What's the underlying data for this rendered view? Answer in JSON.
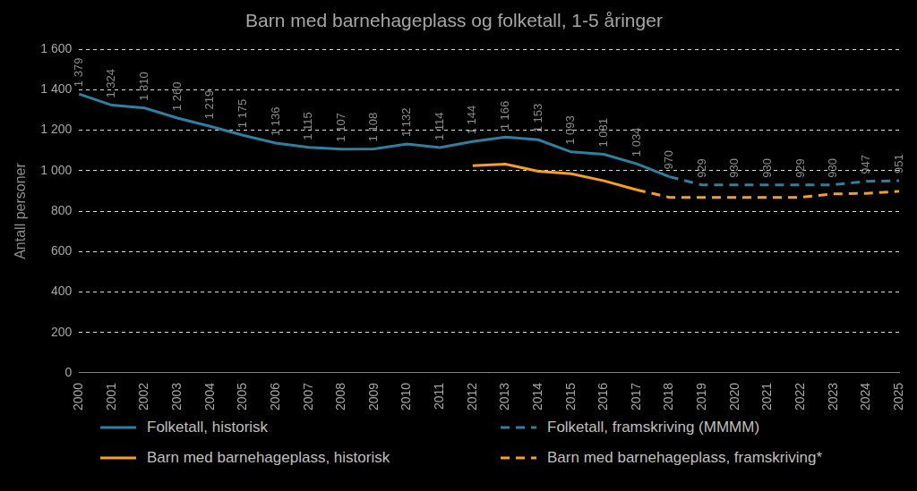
{
  "chart_data": {
    "type": "line",
    "title": "Barn med barnehageplass og folketall, 1-5 åringer",
    "y_label": "Antall personer",
    "categories": [
      "2000",
      "2001",
      "2002",
      "2003",
      "2004",
      "2005",
      "2006",
      "2007",
      "2008",
      "2009",
      "2010",
      "2011",
      "2012",
      "2013",
      "2014",
      "2015",
      "2016",
      "2017",
      "2018",
      "2019",
      "2020",
      "2021",
      "2022",
      "2023",
      "2024",
      "2025"
    ],
    "ylim": [
      0,
      1600
    ],
    "yticks": [
      0,
      200,
      400,
      600,
      800,
      {
        "value": 1000,
        "label": "1 000"
      },
      {
        "value": 1200,
        "label": "1 200"
      },
      {
        "value": 1400,
        "label": "1 400"
      },
      {
        "value": 1600,
        "label": "1 600"
      }
    ],
    "grid": true,
    "legend": "bottom",
    "series": [
      {
        "name": "Folketall, historisk",
        "color": "#2f7f9f",
        "line_style": "solid",
        "data_labels": true,
        "values": [
          1379,
          1324,
          1310,
          1260,
          1219,
          1175,
          1136,
          1115,
          1107,
          1108,
          1132,
          1114,
          1144,
          1166,
          1153,
          1093,
          1081,
          1034,
          970,
          null,
          null,
          null,
          null,
          null,
          null,
          null
        ],
        "value_labels": [
          "1 379",
          "1 324",
          "1 310",
          "1 260",
          "1 219",
          "1 175",
          "1 136",
          "1 115",
          "1 107",
          "1 108",
          "1 132",
          "1 114",
          "1 144",
          "1 166",
          "1 153",
          "1 093",
          "1 081",
          "1 034",
          "970",
          null,
          null,
          null,
          null,
          null,
          null,
          null
        ]
      },
      {
        "name": "Folketall, framskriving (MMMM)",
        "color": "#2f7f9f",
        "line_style": "dashed",
        "data_labels": true,
        "values": [
          null,
          null,
          null,
          null,
          null,
          null,
          null,
          null,
          null,
          null,
          null,
          null,
          null,
          null,
          null,
          null,
          null,
          null,
          970,
          929,
          930,
          930,
          929,
          930,
          947,
          951
        ],
        "value_labels": [
          null,
          null,
          null,
          null,
          null,
          null,
          null,
          null,
          null,
          null,
          null,
          null,
          null,
          null,
          null,
          null,
          null,
          null,
          null,
          "929",
          "930",
          "930",
          "929",
          "930",
          "947",
          "951"
        ]
      },
      {
        "name": "Barn med barnehageplass, historisk",
        "color": "#f5a020",
        "line_style": "solid",
        "values": [
          null,
          null,
          null,
          null,
          null,
          null,
          null,
          null,
          null,
          null,
          null,
          null,
          1025,
          1032,
          997,
          985,
          950,
          905,
          null,
          null,
          null,
          null,
          null,
          null,
          null,
          null
        ]
      },
      {
        "name": "Barn med barnehageplass, framskriving*",
        "color": "#f5a020",
        "line_style": "dashed",
        "values": [
          null,
          null,
          null,
          null,
          null,
          null,
          null,
          null,
          null,
          null,
          null,
          null,
          null,
          null,
          null,
          null,
          null,
          905,
          868,
          868,
          868,
          868,
          868,
          885,
          888,
          898
        ]
      }
    ]
  }
}
